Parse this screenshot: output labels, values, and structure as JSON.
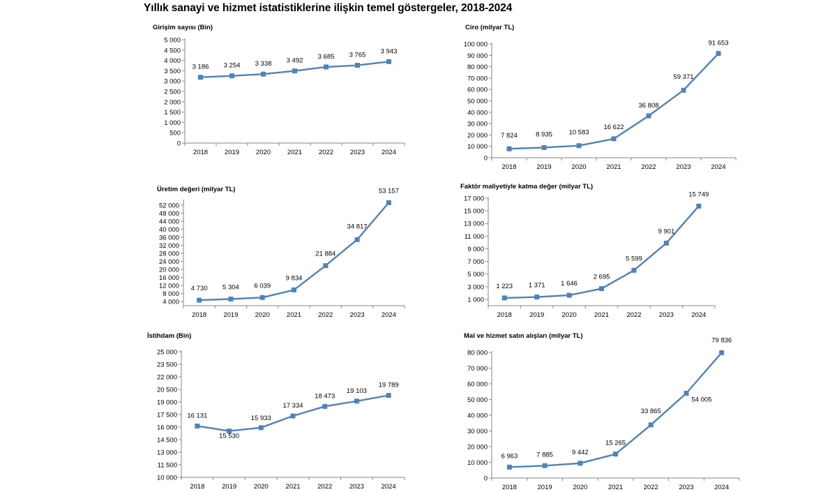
{
  "page_title": "Yıllık sanayi ve hizmet istatistiklerine ilişkin temel göstergeler,  2018-2024",
  "colors": {
    "series": "#4F81BD",
    "axis": "#868686"
  },
  "chart_data": [
    {
      "id": "girisim",
      "type": "line",
      "title": "Girişim sayısı (Bin)",
      "categories": [
        "2018",
        "2019",
        "2020",
        "2021",
        "2022",
        "2023",
        "2024"
      ],
      "values": [
        3186,
        3254,
        3338,
        3492,
        3685,
        3765,
        3943
      ],
      "labels": [
        "3 186",
        "3 254",
        "3 338",
        "3 492",
        "3 685",
        "3 765",
        "3 943"
      ],
      "ylim": [
        0,
        5000
      ],
      "yticks": [
        0,
        500,
        1000,
        1500,
        2000,
        2500,
        3000,
        3500,
        4000,
        4500,
        5000
      ],
      "ytick_labels": [
        "0",
        "500",
        "1 000",
        "1 500",
        "2 000",
        "2 500",
        "3 000",
        "3 500",
        "4 000",
        "4 500",
        "5 000"
      ]
    },
    {
      "id": "ciro",
      "type": "line",
      "title": "Ciro (milyar TL)",
      "categories": [
        "2018",
        "2019",
        "2020",
        "2021",
        "2022",
        "2023",
        "2024"
      ],
      "values": [
        7824,
        8935,
        10583,
        16622,
        36808,
        59371,
        91653
      ],
      "labels": [
        "7 824",
        "8 935",
        "10 583",
        "16 622",
        "36 808",
        "59 371",
        "91 653"
      ],
      "ylim": [
        0,
        100000
      ],
      "yticks": [
        0,
        10000,
        20000,
        30000,
        40000,
        50000,
        60000,
        70000,
        80000,
        90000,
        100000
      ],
      "ytick_labels": [
        "0",
        "10 000",
        "20 000",
        "30 000",
        "40 000",
        "50 000",
        "60 000",
        "70 000",
        "80 000",
        "90 000",
        "100 000"
      ]
    },
    {
      "id": "uretim",
      "type": "line",
      "title": "Üretim değeri (milyar TL)",
      "categories": [
        "2018",
        "2019",
        "2020",
        "2021",
        "2022",
        "2023",
        "2024"
      ],
      "values": [
        4730,
        5304,
        6039,
        9834,
        21884,
        34817,
        53157
      ],
      "labels": [
        "4 730",
        "5 304",
        "6 039",
        "9 834",
        "21 884",
        "34 817",
        "53 157"
      ],
      "ylim": [
        2000,
        54000
      ],
      "yticks": [
        4000,
        8000,
        12000,
        16000,
        20000,
        24000,
        28000,
        32000,
        36000,
        40000,
        44000,
        48000,
        52000
      ],
      "ytick_labels": [
        "4 000",
        "8 000",
        "12 000",
        "16 000",
        "20 000",
        "24 000",
        "28 000",
        "32 000",
        "36 000",
        "40 000",
        "44 000",
        "48 000",
        "52 000"
      ]
    },
    {
      "id": "faktor",
      "type": "line",
      "title": "Faktör maliyetiyle katma değer (milyar TL)",
      "categories": [
        "2018",
        "2019",
        "2020",
        "2021",
        "2022",
        "2023",
        "2024"
      ],
      "values": [
        1223,
        1371,
        1646,
        2695,
        5599,
        9901,
        15749
      ],
      "labels": [
        "1 223",
        "1 371",
        "1 646",
        "2 695",
        "5 599",
        "9 901",
        "15 749"
      ],
      "ylim": [
        0,
        17000
      ],
      "yticks": [
        1000,
        3000,
        5000,
        7000,
        9000,
        11000,
        13000,
        15000,
        17000
      ],
      "ytick_labels": [
        "1 000",
        "3 000",
        "5 000",
        "7 000",
        "9 000",
        "11 000",
        "13 000",
        "15 000",
        "17 000"
      ]
    },
    {
      "id": "istihdam",
      "type": "line",
      "title": "İstihdam (Bin)",
      "categories": [
        "2018",
        "2019",
        "2020",
        "2021",
        "2022",
        "2023",
        "2024"
      ],
      "values": [
        16131,
        15530,
        15933,
        17334,
        18473,
        19103,
        19789
      ],
      "labels": [
        "16 131",
        "15 530",
        "15 933",
        "17 334",
        "18 473",
        "19 103",
        "19 789"
      ],
      "ylim": [
        10000,
        25000
      ],
      "yticks": [
        10000,
        11500,
        13000,
        14500,
        16000,
        17500,
        19000,
        20500,
        22000,
        23500,
        25000
      ],
      "ytick_labels": [
        "10 000",
        "11 500",
        "13 000",
        "14 500",
        "16 000",
        "17 500",
        "19 000",
        "20 500",
        "22 000",
        "23 500",
        "25 000"
      ]
    },
    {
      "id": "mal",
      "type": "line",
      "title": "Mal ve hizmet satın alışları (milyar TL)",
      "categories": [
        "2018",
        "2019",
        "2020",
        "2021",
        "2022",
        "2023",
        "2024"
      ],
      "values": [
        6963,
        7885,
        9442,
        15265,
        33865,
        54005,
        79836
      ],
      "labels": [
        "6 963",
        "7 885",
        "9 442",
        "15 265",
        "33 865",
        "54 005",
        "79 836"
      ],
      "ylim": [
        0,
        80000
      ],
      "yticks": [
        0,
        10000,
        20000,
        30000,
        40000,
        50000,
        60000,
        70000,
        80000
      ],
      "ytick_labels": [
        "0",
        "10 000",
        "20 000",
        "30 000",
        "40 000",
        "50 000",
        "60 000",
        "70 000",
        "80 000"
      ]
    }
  ]
}
